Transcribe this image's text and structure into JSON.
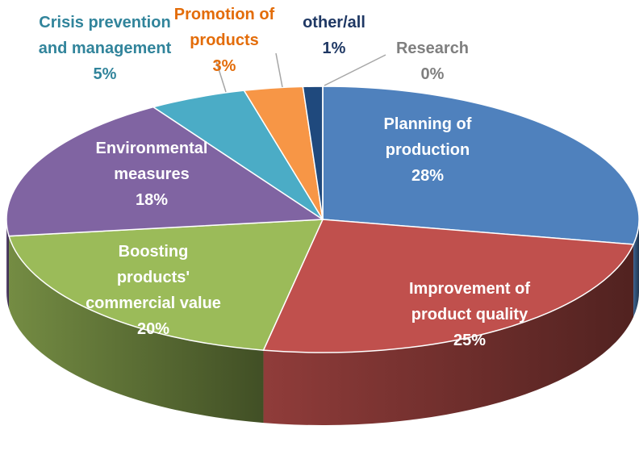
{
  "chart_data": {
    "type": "pie",
    "categories": [
      "Planning of production",
      "Improvement of product quality",
      "Boosting products' commercial value",
      "Environmental measures",
      "Crisis prevention and management",
      "Promotion of products",
      "other/all",
      "Research"
    ],
    "values": [
      28,
      25,
      20,
      18,
      5,
      3,
      1,
      0
    ],
    "value_labels": [
      "28%",
      "25%",
      "20%",
      "18%",
      "5%",
      "3%",
      "1%",
      "0%"
    ],
    "colors": [
      "#4f81bd",
      "#c0504d",
      "#9bbb59",
      "#8064a2",
      "#4bacc6",
      "#f79646",
      "#1f497d",
      "#8c8c8c"
    ]
  }
}
